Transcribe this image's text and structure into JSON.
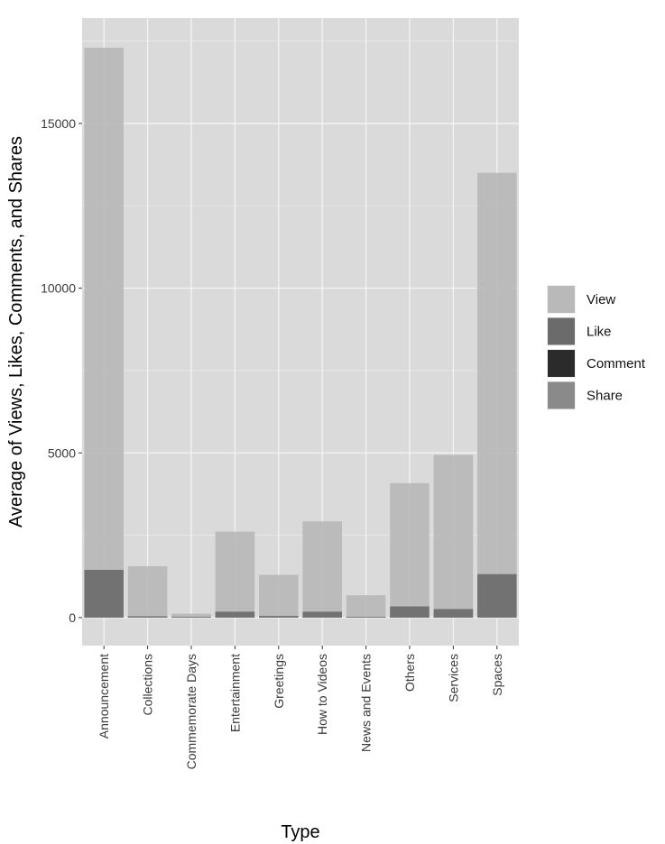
{
  "chart_data": {
    "type": "bar",
    "title": "",
    "xlabel": "Type",
    "ylabel": "Average of Views, Likes, Comments, and Shares",
    "categories": [
      "Announcement",
      "Collections",
      "Commemorate Days",
      "Entertainment",
      "Greetings",
      "How to Videos",
      "News and Events",
      "Others",
      "Services",
      "Spaces"
    ],
    "series": [
      {
        "name": "View",
        "color": "#b9b9b9",
        "values": [
          17300,
          1560,
          120,
          2610,
          1300,
          2920,
          680,
          4080,
          4940,
          13500
        ]
      },
      {
        "name": "Like",
        "color": "#6b6b6b",
        "values": [
          1450,
          40,
          5,
          180,
          50,
          180,
          20,
          340,
          260,
          1320
        ]
      },
      {
        "name": "Comment",
        "color": "#2b2b2b",
        "values": [
          15,
          1,
          0,
          3,
          1,
          2,
          0,
          5,
          4,
          15
        ]
      },
      {
        "name": "Share",
        "color": "#8a8a8a",
        "values": [
          10,
          1,
          0,
          2,
          1,
          2,
          0,
          4,
          3,
          12
        ]
      }
    ],
    "yticks": [
      0,
      5000,
      10000,
      15000
    ],
    "ytick_labels": [
      "0",
      "5000",
      "10000",
      "15000"
    ],
    "ylim": [
      -850,
      18200
    ],
    "grid": true,
    "legend": "right"
  }
}
